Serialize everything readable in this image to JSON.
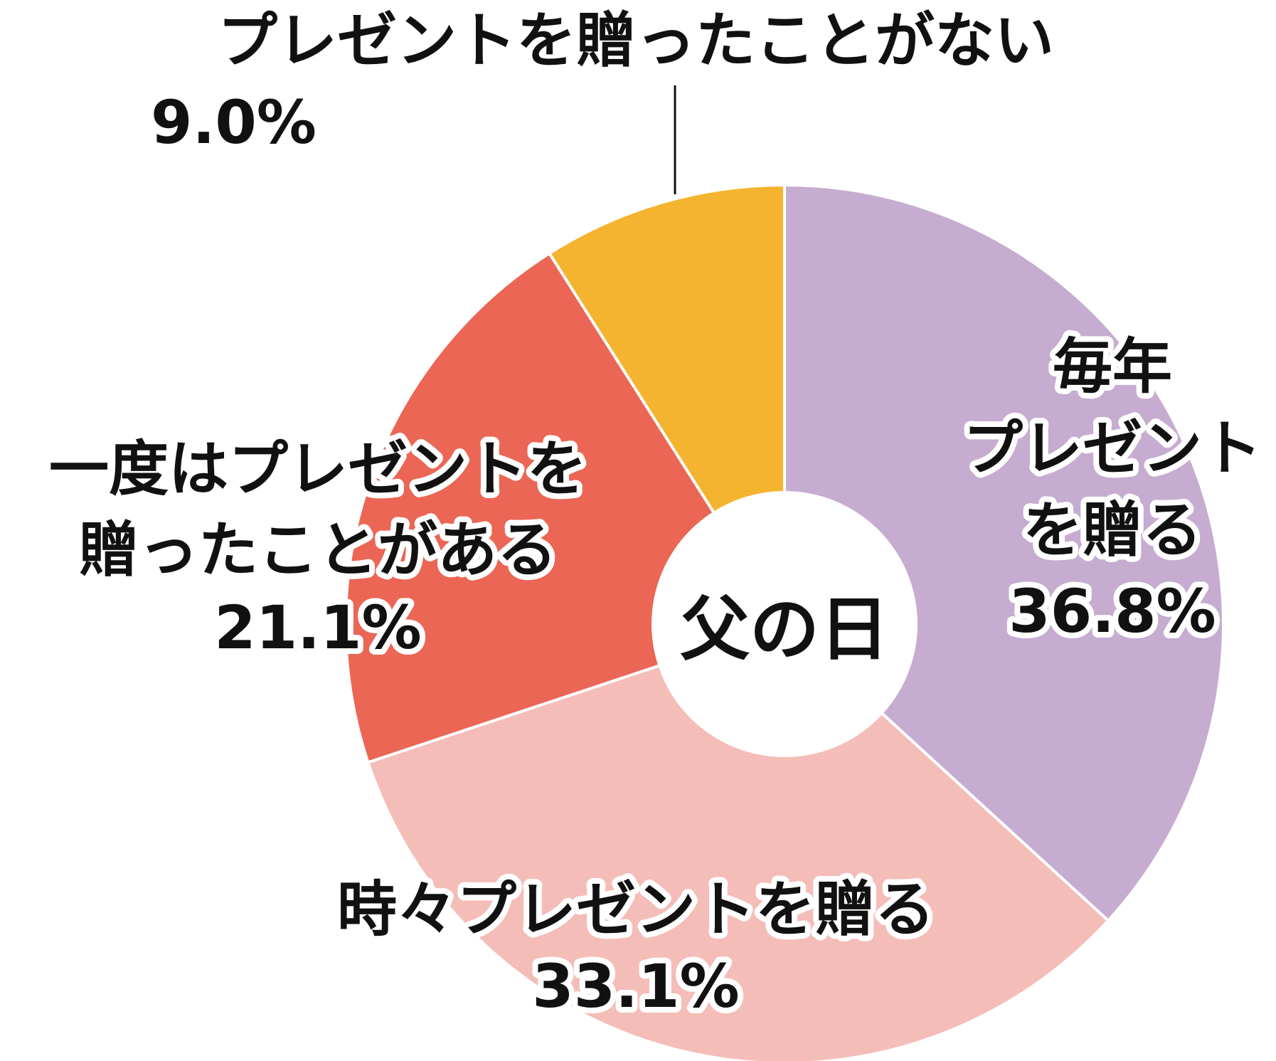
{
  "chart_data": {
    "type": "donut",
    "center_label": "父の日",
    "categories": [
      [
        "毎年",
        "プレゼント",
        "を贈る"
      ],
      [
        "時々プレゼントを贈る"
      ],
      [
        "一度はプレゼントを",
        "贈ったことがある"
      ],
      [
        "プレゼントを贈ったことがない"
      ]
    ],
    "values": [
      36.8,
      33.1,
      21.1,
      9.0
    ],
    "value_labels": [
      "36.8%",
      "33.1%",
      "21.1%",
      "9.0%"
    ],
    "colors": [
      "#c6acd0",
      "#f5bdb8",
      "#eb6654",
      "#f5b42f"
    ]
  }
}
